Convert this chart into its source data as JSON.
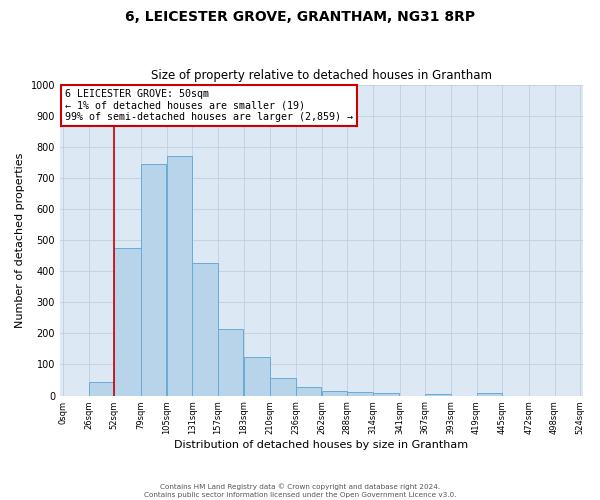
{
  "title": "6, LEICESTER GROVE, GRANTHAM, NG31 8RP",
  "subtitle": "Size of property relative to detached houses in Grantham",
  "xlabel": "Distribution of detached houses by size in Grantham",
  "ylabel": "Number of detached properties",
  "annotation_line1": "6 LEICESTER GROVE: 50sqm",
  "annotation_line2": "← 1% of detached houses are smaller (19)",
  "annotation_line3": "99% of semi-detached houses are larger (2,859) →",
  "bar_left_edges": [
    0,
    26,
    52,
    79,
    105,
    131,
    157,
    183,
    210,
    236,
    262,
    288,
    314,
    341,
    367,
    393,
    419,
    445,
    472,
    498
  ],
  "bar_widths": [
    26,
    26,
    27,
    26,
    26,
    26,
    26,
    27,
    26,
    26,
    26,
    26,
    27,
    26,
    26,
    26,
    26,
    27,
    26,
    26
  ],
  "bar_heights": [
    0,
    45,
    475,
    745,
    770,
    425,
    215,
    125,
    55,
    28,
    15,
    10,
    8,
    0,
    5,
    0,
    8,
    0,
    0,
    0
  ],
  "bar_color": "#b8d4eb",
  "bar_edgecolor": "#6aaad4",
  "property_line_x": 52,
  "property_line_color": "#cc0000",
  "annotation_box_edgecolor": "#cc0000",
  "annotation_box_facecolor": "#ffffff",
  "tick_labels": [
    "0sqm",
    "26sqm",
    "52sqm",
    "79sqm",
    "105sqm",
    "131sqm",
    "157sqm",
    "183sqm",
    "210sqm",
    "236sqm",
    "262sqm",
    "288sqm",
    "314sqm",
    "341sqm",
    "367sqm",
    "393sqm",
    "419sqm",
    "445sqm",
    "472sqm",
    "498sqm",
    "524sqm"
  ],
  "tick_positions": [
    0,
    26,
    52,
    79,
    105,
    131,
    157,
    183,
    210,
    236,
    262,
    288,
    314,
    341,
    367,
    393,
    419,
    445,
    472,
    498,
    524
  ],
  "ylim": [
    0,
    1000
  ],
  "yticks": [
    0,
    100,
    200,
    300,
    400,
    500,
    600,
    700,
    800,
    900,
    1000
  ],
  "plot_bg_color": "#dce9f5",
  "fig_bg_color": "#ffffff",
  "footer1": "Contains HM Land Registry data © Crown copyright and database right 2024.",
  "footer2": "Contains public sector information licensed under the Open Government Licence v3.0."
}
